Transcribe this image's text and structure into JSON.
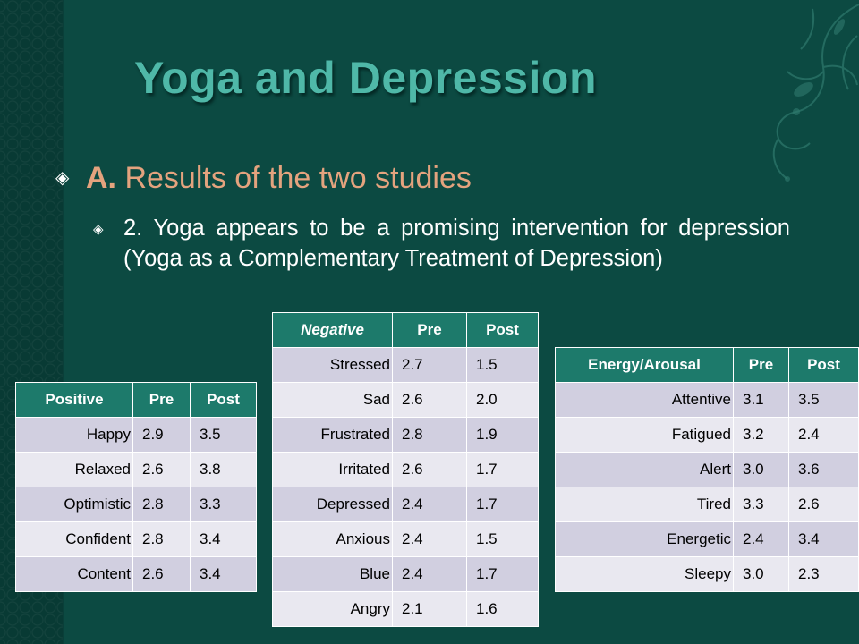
{
  "title": "Yoga and Depression",
  "bullet1": {
    "prefix": "A.",
    "text": " Results of the two studies"
  },
  "bullet2": {
    "text": "2. Yoga appears to be a promising intervention for depression (Yoga as a Complementary Treatment of Depression)"
  },
  "colors": {
    "background": "#0c4a42",
    "title": "#4fb8a8",
    "heading": "#e4a37e",
    "table_header": "#1d7a6b",
    "row_odd": "#d1cfe0",
    "row_even": "#e9e8f0"
  },
  "tables": {
    "positive": {
      "headers": [
        "Positive",
        "Pre",
        "Post"
      ],
      "rows": [
        [
          "Happy",
          "2.9",
          "3.5"
        ],
        [
          "Relaxed",
          "2.6",
          "3.8"
        ],
        [
          "Optimistic",
          "2.8",
          "3.3"
        ],
        [
          "Confident",
          "2.8",
          "3.4"
        ],
        [
          "Content",
          "2.6",
          "3.4"
        ]
      ]
    },
    "negative": {
      "headers": [
        "Negative",
        "Pre",
        "Post"
      ],
      "rows": [
        [
          "Stressed",
          "2.7",
          "1.5"
        ],
        [
          "Sad",
          "2.6",
          "2.0"
        ],
        [
          "Frustrated",
          "2.8",
          "1.9"
        ],
        [
          "Irritated",
          "2.6",
          "1.7"
        ],
        [
          "Depressed",
          "2.4",
          "1.7"
        ],
        [
          "Anxious",
          "2.4",
          "1.5"
        ],
        [
          "Blue",
          "2.4",
          "1.7"
        ],
        [
          "Angry",
          "2.1",
          "1.6"
        ]
      ]
    },
    "energy": {
      "headers": [
        "Energy/Arousal",
        "Pre",
        "Post"
      ],
      "rows": [
        [
          "Attentive",
          "3.1",
          "3.5"
        ],
        [
          "Fatigued",
          "3.2",
          "2.4"
        ],
        [
          "Alert",
          "3.0",
          "3.6"
        ],
        [
          "Tired",
          "3.3",
          "2.6"
        ],
        [
          "Energetic",
          "2.4",
          "3.4"
        ],
        [
          "Sleepy",
          "3.0",
          "2.3"
        ]
      ]
    }
  }
}
